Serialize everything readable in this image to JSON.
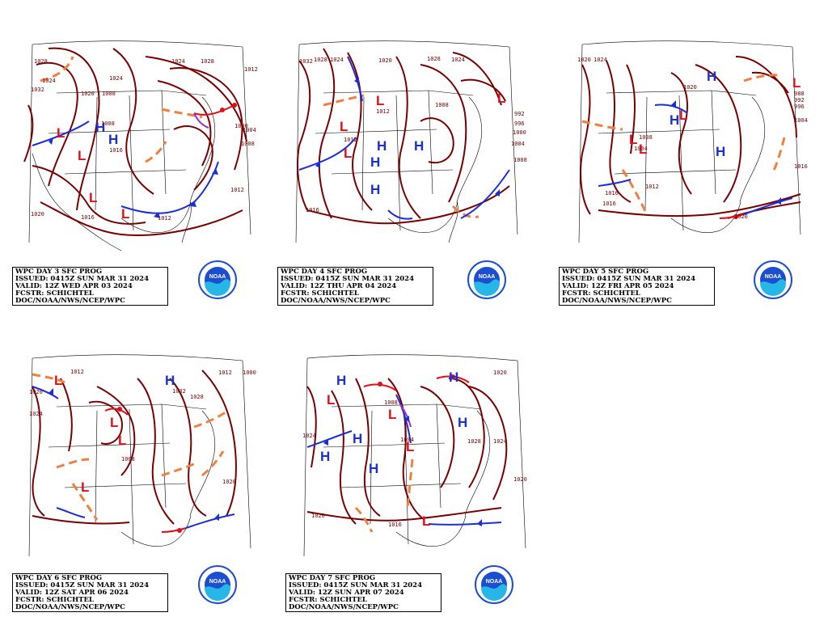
{
  "colors": {
    "isobar": "#7a0000",
    "high": "#1a2fd6",
    "low": "#e0101a",
    "trough": "#f08040",
    "cold_front": "#1a2fd6",
    "warm_front": "#e0101a",
    "occluded": "#9b30c8",
    "map_line": "#000000",
    "logo_blue": "#1c4fd0",
    "logo_cyan": "#27b6e8"
  },
  "logo_text": "NOAA",
  "panels": [
    {
      "line1": "WPC DAY 3 SFC PROG",
      "line2": "ISSUED: 0415Z SUN MAR 31 2024",
      "line3": "VALID: 12Z WED APR 03 2024",
      "line4": "FCSTR: SCHICHTEL",
      "line5": "DOC/NOAA/NWS/NCEP/WPC",
      "isobar_labels": [
        "1028",
        "1032",
        "1020",
        "1008",
        "1024",
        "1028",
        "1024",
        "1012",
        "1004",
        "1008",
        "1000",
        "1008",
        "1012",
        "1016",
        "1020",
        "1024",
        "1012",
        "1016"
      ],
      "centers": [
        "H",
        "H",
        "L",
        "L",
        "L",
        "L"
      ]
    },
    {
      "line1": "WPC DAY 4 SFC PROG",
      "line2": "ISSUED: 0415Z SUN MAR 31 2024",
      "line3": "VALID: 12Z THU APR 04 2024",
      "line4": "FCSTR: SCHICHTEL",
      "line5": "DOC/NOAA/NWS/NCEP/WPC",
      "isobar_labels": [
        "1032",
        "1028",
        "1024",
        "1020",
        "1028",
        "1024",
        "1012",
        "1008",
        "992",
        "996",
        "1000",
        "1004",
        "1008",
        "1016",
        "1012"
      ],
      "centers": [
        "H",
        "H",
        "H",
        "H",
        "L",
        "L",
        "L",
        "L"
      ]
    },
    {
      "line1": "WPC DAY 5 SFC PROG",
      "line2": "ISSUED: 0415Z SUN MAR 31 2024",
      "line3": "VALID: 12Z FRI APR 05 2024",
      "line4": "FCSTR: SCHICHTEL",
      "line5": "DOC/NOAA/NWS/NCEP/WPC",
      "isobar_labels": [
        "1020",
        "1024",
        "1016",
        "1020",
        "1008",
        "1004",
        "988",
        "992",
        "996",
        "1004",
        "1016",
        "1012",
        "1016",
        "1020"
      ],
      "centers": [
        "H",
        "H",
        "H",
        "L",
        "L",
        "L",
        "L"
      ]
    },
    {
      "line1": "WPC DAY 6 SFC PROG",
      "line2": "ISSUED: 0415Z SUN MAR 31 2024",
      "line3": "VALID: 12Z SAT APR 06 2024",
      "line4": "FCSTR: SCHICHTEL",
      "line5": "DOC/NOAA/NWS/NCEP/WPC",
      "isobar_labels": [
        "1012",
        "1020",
        "1024",
        "1032",
        "1028",
        "1000",
        "1008",
        "1020",
        "1012"
      ],
      "centers": [
        "H",
        "L",
        "L",
        "L",
        "L"
      ]
    },
    {
      "line1": "WPC DAY 7 SFC PROG",
      "line2": "ISSUED: 0415Z SUN MAR 31 2024",
      "line3": "VALID: 12Z SUN APR 07 2024",
      "line4": "FCSTR: SCHICHTEL",
      "line5": "DOC/NOAA/NWS/NCEP/WPC",
      "isobar_labels": [
        "1020",
        "1024",
        "1008",
        "1004",
        "1028",
        "1024",
        "1020",
        "1016",
        "1020"
      ],
      "centers": [
        "H",
        "H",
        "H",
        "H",
        "H",
        "H",
        "L",
        "L",
        "L",
        "L"
      ]
    }
  ]
}
